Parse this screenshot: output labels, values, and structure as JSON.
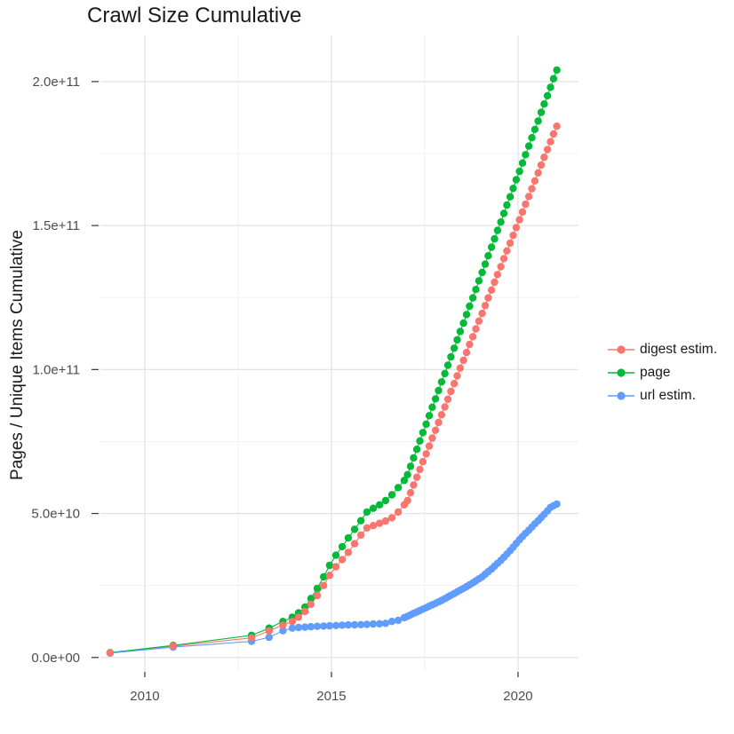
{
  "title": "Crawl Size Cumulative",
  "chart_data": {
    "type": "line",
    "title": "Crawl Size Cumulative",
    "xlabel": "",
    "ylabel": "Pages / Unique Items Cumulative",
    "legend_position": "right",
    "grid": true,
    "x_range": [
      2008.81,
      2021.62
    ],
    "y_range_e9": [
      -5,
      216
    ],
    "x_ticks": [
      {
        "value": 2010,
        "label": "2010"
      },
      {
        "value": 2015,
        "label": "2015"
      },
      {
        "value": 2020,
        "label": "2020"
      }
    ],
    "x_minor_ticks": [
      2012.5,
      2017.5
    ],
    "y_ticks": [
      {
        "value_e9": 0,
        "label": "0.0e+00"
      },
      {
        "value_e9": 50,
        "label": "5.0e+10"
      },
      {
        "value_e9": 100,
        "label": "1.0e+11"
      },
      {
        "value_e9": 150,
        "label": "1.5e+11"
      },
      {
        "value_e9": 200,
        "label": "2.0e+11"
      }
    ],
    "y_minor_ticks_e9": [
      25,
      75,
      125,
      175
    ],
    "value_unit": "values stored in billions (1e9)",
    "series": [
      {
        "name": "digest estim.",
        "color": "#F8766D",
        "points_year_value_e9": [
          [
            2009.07,
            1.6
          ],
          [
            2010.76,
            3.9
          ],
          [
            2012.86,
            6.8
          ],
          [
            2013.33,
            9.2
          ],
          [
            2013.7,
            11.2
          ],
          [
            2013.95,
            12.5
          ],
          [
            2014.12,
            14
          ],
          [
            2014.29,
            16
          ],
          [
            2014.45,
            18.5
          ],
          [
            2014.62,
            21.5
          ],
          [
            2014.79,
            25
          ],
          [
            2014.95,
            28.5
          ],
          [
            2015.12,
            31.5
          ],
          [
            2015.29,
            34
          ],
          [
            2015.45,
            36.5
          ],
          [
            2015.62,
            39.5
          ],
          [
            2015.79,
            42.5
          ],
          [
            2015.95,
            45
          ],
          [
            2016.12,
            45.8
          ],
          [
            2016.29,
            46.6
          ],
          [
            2016.45,
            47.4
          ],
          [
            2016.62,
            48.5
          ],
          [
            2016.79,
            50.5
          ],
          [
            2016.95,
            53
          ],
          [
            2017.04,
            54.5
          ],
          [
            2017.12,
            57.2
          ],
          [
            2017.2,
            59.9
          ],
          [
            2017.29,
            62.6
          ],
          [
            2017.37,
            65.3
          ],
          [
            2017.45,
            68
          ],
          [
            2017.54,
            70.7
          ],
          [
            2017.62,
            73.4
          ],
          [
            2017.7,
            76.2
          ],
          [
            2017.79,
            78.9
          ],
          [
            2017.87,
            81.6
          ],
          [
            2017.95,
            84.3
          ],
          [
            2018.04,
            87
          ],
          [
            2018.12,
            89.7
          ],
          [
            2018.2,
            92.4
          ],
          [
            2018.29,
            95.1
          ],
          [
            2018.37,
            97.8
          ],
          [
            2018.45,
            100.5
          ],
          [
            2018.54,
            103.2
          ],
          [
            2018.62,
            105.9
          ],
          [
            2018.7,
            108.7
          ],
          [
            2018.79,
            111.4
          ],
          [
            2018.87,
            114.1
          ],
          [
            2018.95,
            116.8
          ],
          [
            2019.04,
            119.5
          ],
          [
            2019.12,
            122.2
          ],
          [
            2019.2,
            124.9
          ],
          [
            2019.29,
            127.6
          ],
          [
            2019.37,
            130.3
          ],
          [
            2019.45,
            133
          ],
          [
            2019.54,
            135.7
          ],
          [
            2019.62,
            138.5
          ],
          [
            2019.7,
            141.2
          ],
          [
            2019.79,
            143.9
          ],
          [
            2019.87,
            146.6
          ],
          [
            2019.95,
            149.3
          ],
          [
            2020.04,
            152
          ],
          [
            2020.12,
            154.7
          ],
          [
            2020.2,
            157.4
          ],
          [
            2020.29,
            160.1
          ],
          [
            2020.37,
            162.8
          ],
          [
            2020.45,
            165.5
          ],
          [
            2020.54,
            168.3
          ],
          [
            2020.62,
            171
          ],
          [
            2020.7,
            173.7
          ],
          [
            2020.79,
            176.4
          ],
          [
            2020.87,
            179.1
          ],
          [
            2020.95,
            181.8
          ],
          [
            2021.04,
            184.5
          ]
        ]
      },
      {
        "name": "page",
        "color": "#00BA38",
        "points_year_value_e9": [
          [
            2009.07,
            1.7
          ],
          [
            2010.76,
            4.2
          ],
          [
            2012.86,
            7.7
          ],
          [
            2013.33,
            10.2
          ],
          [
            2013.7,
            12.5
          ],
          [
            2013.95,
            14
          ],
          [
            2014.12,
            15.5
          ],
          [
            2014.29,
            17.5
          ],
          [
            2014.45,
            20.5
          ],
          [
            2014.62,
            24
          ],
          [
            2014.79,
            28
          ],
          [
            2014.95,
            32
          ],
          [
            2015.12,
            35.5
          ],
          [
            2015.29,
            38.5
          ],
          [
            2015.45,
            41.5
          ],
          [
            2015.62,
            44.5
          ],
          [
            2015.79,
            47.5
          ],
          [
            2015.95,
            50.5
          ],
          [
            2016.12,
            51.8
          ],
          [
            2016.29,
            53
          ],
          [
            2016.45,
            54.5
          ],
          [
            2016.62,
            56.5
          ],
          [
            2016.79,
            59
          ],
          [
            2016.95,
            61.5
          ],
          [
            2017.04,
            63.5
          ],
          [
            2017.12,
            66.4
          ],
          [
            2017.2,
            69.3
          ],
          [
            2017.29,
            72.3
          ],
          [
            2017.37,
            75.2
          ],
          [
            2017.45,
            78.1
          ],
          [
            2017.54,
            81
          ],
          [
            2017.62,
            84
          ],
          [
            2017.7,
            86.9
          ],
          [
            2017.79,
            89.8
          ],
          [
            2017.87,
            92.7
          ],
          [
            2017.95,
            95.7
          ],
          [
            2018.04,
            98.6
          ],
          [
            2018.12,
            101.5
          ],
          [
            2018.2,
            104.4
          ],
          [
            2018.29,
            107.4
          ],
          [
            2018.37,
            110.3
          ],
          [
            2018.45,
            113.2
          ],
          [
            2018.54,
            116.1
          ],
          [
            2018.62,
            119.1
          ],
          [
            2018.7,
            122
          ],
          [
            2018.79,
            124.9
          ],
          [
            2018.87,
            127.8
          ],
          [
            2018.95,
            130.8
          ],
          [
            2019.04,
            133.7
          ],
          [
            2019.12,
            136.6
          ],
          [
            2019.2,
            139.5
          ],
          [
            2019.29,
            142.5
          ],
          [
            2019.37,
            145.4
          ],
          [
            2019.45,
            148.3
          ],
          [
            2019.54,
            151.2
          ],
          [
            2019.62,
            154.2
          ],
          [
            2019.7,
            157.1
          ],
          [
            2019.79,
            160
          ],
          [
            2019.87,
            162.9
          ],
          [
            2019.95,
            165.9
          ],
          [
            2020.04,
            168.8
          ],
          [
            2020.12,
            171.7
          ],
          [
            2020.2,
            174.6
          ],
          [
            2020.29,
            177.6
          ],
          [
            2020.37,
            180.5
          ],
          [
            2020.45,
            183.4
          ],
          [
            2020.54,
            186.3
          ],
          [
            2020.62,
            189.3
          ],
          [
            2020.7,
            192.2
          ],
          [
            2020.79,
            195.1
          ],
          [
            2020.87,
            198
          ],
          [
            2020.95,
            201
          ],
          [
            2021.04,
            204
          ]
        ]
      },
      {
        "name": "url estim.",
        "color": "#619CFF",
        "points_year_value_e9": [
          [
            2009.07,
            1.5
          ],
          [
            2010.76,
            3.6
          ],
          [
            2012.86,
            5.6
          ],
          [
            2013.33,
            7
          ],
          [
            2013.7,
            9.3
          ],
          [
            2013.95,
            10.2
          ],
          [
            2014.12,
            10.4
          ],
          [
            2014.29,
            10.55
          ],
          [
            2014.45,
            10.7
          ],
          [
            2014.62,
            10.8
          ],
          [
            2014.79,
            10.9
          ],
          [
            2014.95,
            11
          ],
          [
            2015.12,
            11.1
          ],
          [
            2015.29,
            11.2
          ],
          [
            2015.45,
            11.3
          ],
          [
            2015.62,
            11.35
          ],
          [
            2015.79,
            11.4
          ],
          [
            2015.95,
            11.5
          ],
          [
            2016.12,
            11.6
          ],
          [
            2016.29,
            11.7
          ],
          [
            2016.45,
            11.85
          ],
          [
            2016.62,
            12.5
          ],
          [
            2016.79,
            12.9
          ],
          [
            2016.95,
            13.8
          ],
          [
            2017.04,
            14.3
          ],
          [
            2017.12,
            14.8
          ],
          [
            2017.2,
            15.3
          ],
          [
            2017.29,
            15.8
          ],
          [
            2017.37,
            16.3
          ],
          [
            2017.45,
            16.8
          ],
          [
            2017.54,
            17.3
          ],
          [
            2017.62,
            17.8
          ],
          [
            2017.7,
            18.3
          ],
          [
            2017.79,
            18.8
          ],
          [
            2017.87,
            19.3
          ],
          [
            2017.95,
            19.8
          ],
          [
            2018.04,
            20.4
          ],
          [
            2018.12,
            21
          ],
          [
            2018.2,
            21.6
          ],
          [
            2018.29,
            22.2
          ],
          [
            2018.37,
            22.8
          ],
          [
            2018.45,
            23.4
          ],
          [
            2018.54,
            24
          ],
          [
            2018.62,
            24.6
          ],
          [
            2018.7,
            25.2
          ],
          [
            2018.79,
            25.9
          ],
          [
            2018.87,
            26.6
          ],
          [
            2018.95,
            27.3
          ],
          [
            2019.04,
            28
          ],
          [
            2019.12,
            28.9
          ],
          [
            2019.2,
            29.8
          ],
          [
            2019.29,
            30.7
          ],
          [
            2019.37,
            31.7
          ],
          [
            2019.45,
            32.7
          ],
          [
            2019.54,
            33.7
          ],
          [
            2019.62,
            34.8
          ],
          [
            2019.7,
            35.9
          ],
          [
            2019.79,
            37.1
          ],
          [
            2019.87,
            38.3
          ],
          [
            2019.95,
            39.6
          ],
          [
            2020.04,
            40.9
          ],
          [
            2020.12,
            42
          ],
          [
            2020.2,
            43.1
          ],
          [
            2020.29,
            44.2
          ],
          [
            2020.37,
            45.3
          ],
          [
            2020.45,
            46.4
          ],
          [
            2020.54,
            47.5
          ],
          [
            2020.62,
            48.6
          ],
          [
            2020.7,
            49.7
          ],
          [
            2020.79,
            50.9
          ],
          [
            2020.87,
            52.1
          ],
          [
            2020.95,
            52.7
          ],
          [
            2021.04,
            53.3
          ]
        ]
      }
    ]
  }
}
